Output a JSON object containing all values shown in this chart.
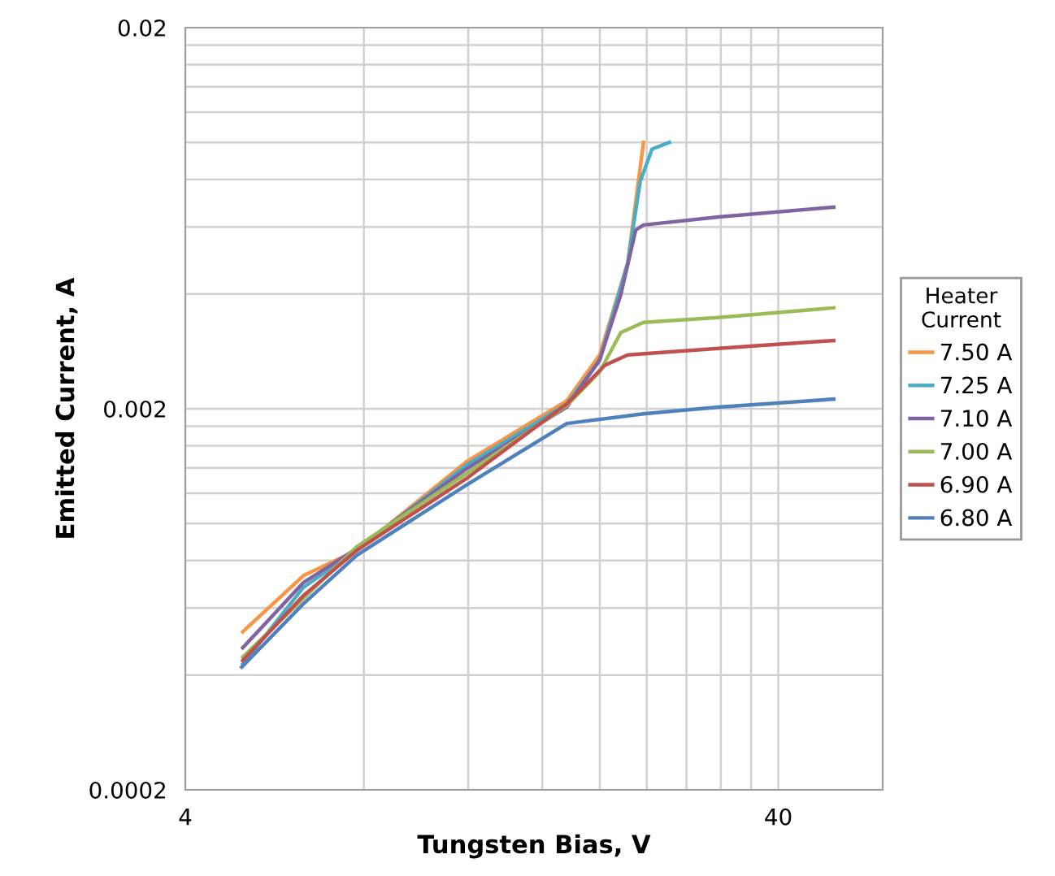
{
  "chart_data": {
    "type": "line",
    "xlabel": "Tungsten Bias, V",
    "ylabel": "Emitted Current, A",
    "legend_title": "Heater Current",
    "legend": "right",
    "log": "xy",
    "grid": true,
    "marker": "none",
    "line_style": "solid",
    "xlim": [
      4,
      60
    ],
    "ylim": [
      0.0002,
      0.02
    ],
    "xticks": [
      4,
      {
        "value": 8,
        "label": null
      },
      {
        "value": 12,
        "label": null
      },
      {
        "value": 16,
        "label": null
      },
      {
        "value": 20,
        "label": null
      },
      {
        "value": 24,
        "label": null
      },
      {
        "value": 28,
        "label": null
      },
      {
        "value": 32,
        "label": null
      },
      {
        "value": 36,
        "label": null
      },
      40
    ],
    "yticks": [
      0.0002,
      {
        "value": 0.0004,
        "label": null
      },
      {
        "value": 0.0006,
        "label": null
      },
      {
        "value": 0.0008,
        "label": null
      },
      {
        "value": 0.001,
        "label": null
      },
      {
        "value": 0.0012,
        "label": null
      },
      {
        "value": 0.0014,
        "label": null
      },
      {
        "value": 0.0016,
        "label": null
      },
      {
        "value": 0.0018,
        "label": null
      },
      0.002,
      {
        "value": 0.004,
        "label": null
      },
      {
        "value": 0.006,
        "label": null
      },
      {
        "value": 0.008,
        "label": null
      },
      {
        "value": 0.01,
        "label": null
      },
      {
        "value": 0.012,
        "label": null
      },
      {
        "value": 0.014,
        "label": null
      },
      {
        "value": 0.016,
        "label": null
      },
      {
        "value": 0.018,
        "label": null
      },
      0.02
    ],
    "series": [
      {
        "name": "7.50 A",
        "color": "#f79646",
        "x": [
          5.0,
          6.33,
          7.79,
          11.9,
          17.6,
          20.0,
          22.3,
          23.7
        ],
        "values": [
          0.00052,
          0.00073,
          0.00085,
          0.00145,
          0.0021,
          0.00277,
          0.00484,
          0.01
        ]
      },
      {
        "name": "7.25 A",
        "color": "#4bacc6",
        "x": [
          5.0,
          6.33,
          7.79,
          11.9,
          17.6,
          20.0,
          22.3,
          23.4,
          24.5,
          26.2
        ],
        "values": [
          0.000428,
          0.00068,
          0.00085,
          0.00142,
          0.00206,
          0.00268,
          0.00484,
          0.0079,
          0.0096,
          0.01
        ]
      },
      {
        "name": "7.10 A",
        "color": "#8064a2",
        "x": [
          5.0,
          6.33,
          7.79,
          11.9,
          17.6,
          20.0,
          21.7,
          23.0,
          23.7,
          31.7,
          49.6
        ],
        "values": [
          0.000472,
          0.0007,
          0.00086,
          0.00139,
          0.00202,
          0.00269,
          0.00398,
          0.00589,
          0.00607,
          0.00637,
          0.00676
        ]
      },
      {
        "name": "7.00 A",
        "color": "#9bbb59",
        "x": [
          5.0,
          7.79,
          11.9,
          17.6,
          20.0,
          21.7,
          23.7,
          31.7,
          49.6
        ],
        "values": [
          0.000446,
          0.00087,
          0.00135,
          0.00204,
          0.0025,
          0.00317,
          0.00337,
          0.00347,
          0.00368
        ]
      },
      {
        "name": "6.90 A",
        "color": "#c0504d",
        "x": [
          5.0,
          6.33,
          7.79,
          11.9,
          17.6,
          20.4,
          22.3,
          31.7,
          49.6
        ],
        "values": [
          0.000437,
          0.000647,
          0.000851,
          0.00131,
          0.00206,
          0.0026,
          0.00277,
          0.00288,
          0.00302
        ]
      },
      {
        "name": "6.80 A",
        "color": "#4f81bd",
        "x": [
          4.98,
          6.33,
          7.79,
          11.9,
          17.6,
          23.7,
          31.7,
          49.6
        ],
        "values": [
          0.00042,
          0.000616,
          0.000826,
          0.00126,
          0.00183,
          0.00194,
          0.00202,
          0.00212
        ]
      }
    ]
  }
}
